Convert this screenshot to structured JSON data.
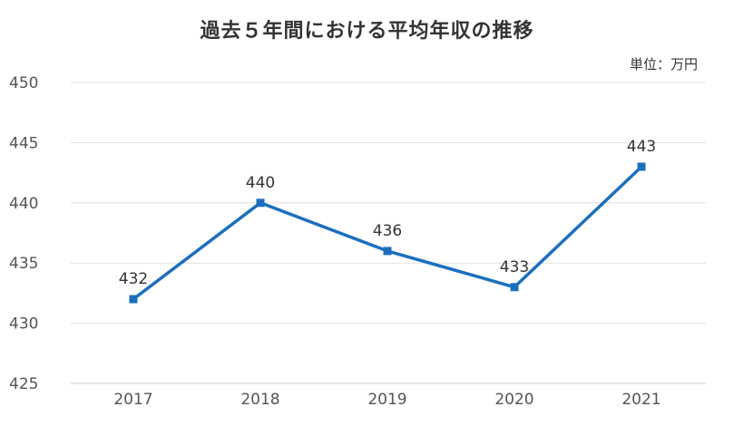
{
  "chart_data": {
    "type": "line",
    "title": "過去５年間における平均年収の推移",
    "unit_label": "単位：万円",
    "xlabel": "",
    "ylabel": "",
    "categories": [
      "2017",
      "2018",
      "2019",
      "2020",
      "2021"
    ],
    "series": [
      {
        "values": [
          432,
          440,
          436,
          433,
          443
        ]
      }
    ],
    "ylim": [
      425,
      450
    ],
    "yticks": [
      425,
      430,
      435,
      440,
      445,
      450
    ],
    "grid": true,
    "legend": "none",
    "colors": {
      "line": "#1c6fbe",
      "grid": "#e0e0e0",
      "axis": "#cccccc"
    }
  }
}
